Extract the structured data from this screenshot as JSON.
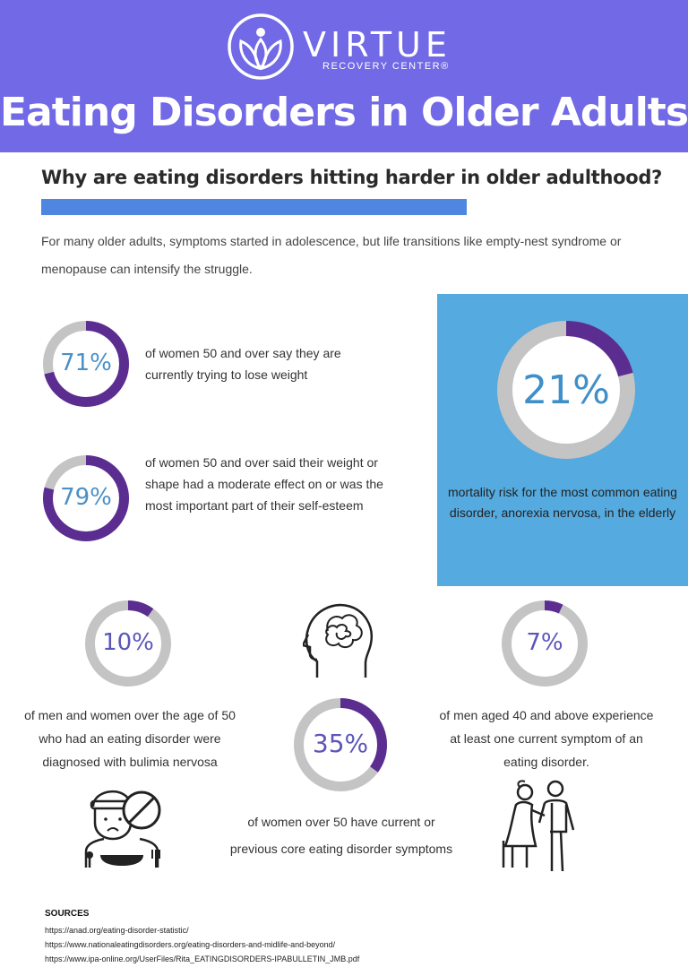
{
  "header": {
    "brand_name": "VIRTUE",
    "brand_sub": "RECOVERY CENTER®",
    "title": "Eating Disorders in Older Adults",
    "bg_color": "#7169e5"
  },
  "intro": {
    "question": "Why are eating disorders hitting harder in older adulthood?",
    "text": "For many older adults, symptoms started in adolescence, but life transitions like empty-nest syndrome or menopause can intensify the struggle."
  },
  "stats": {
    "s71": {
      "value": "71%",
      "percent": 71,
      "text": "of women 50 and over say they are currently trying to lose weight"
    },
    "s79": {
      "value": "79%",
      "percent": 79,
      "text": "of women 50 and over said their weight or shape had a moderate effect on or was the most important part of their self-esteem"
    },
    "s21": {
      "value": "21%",
      "percent": 21,
      "text": "mortality risk for the most common eating disorder, anorexia nervosa, in the elderly"
    },
    "s10": {
      "value": "10%",
      "percent": 10,
      "text": "of men and women over the age of 50 who had an eating disorder were diagnosed with bulimia nervosa"
    },
    "s35": {
      "value": "35%",
      "percent": 35,
      "text": "of women over 50 have current or previous core eating disorder symptoms"
    },
    "s7": {
      "value": "7%",
      "percent": 7,
      "text": "of men aged 40 and above experience at least one current symptom of an eating disorder."
    }
  },
  "colors": {
    "accent_purple": "#5b2d91",
    "ring_gray": "#c4c4c4",
    "blue_box": "#55aadf",
    "bar_blue": "#4f86e0",
    "label_blue": "#4a90c8",
    "label_indigo": "#5b56b8"
  },
  "sources": {
    "title": "SOURCES",
    "items": [
      "https://anad.org/eating-disorder-statistic/",
      "https://www.nationaleatingdisorders.org/eating-disorders-and-midlife-and-beyond/",
      "https://www.ipa-online.org/UserFiles/Rita_EATINGDISORDERS-IPABULLETIN_JMB.pdf"
    ]
  }
}
